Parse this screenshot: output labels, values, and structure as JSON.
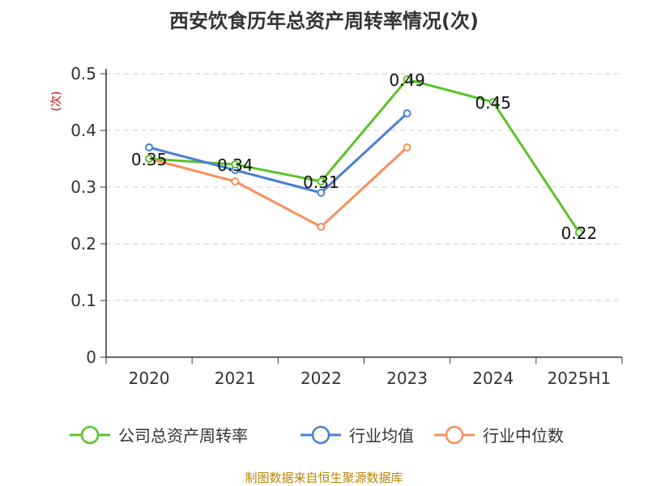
{
  "chart_data": {
    "type": "line",
    "title": "西安饮食历年总资产周转率情况(次)",
    "ylabel": "(次)",
    "xlabel": "",
    "categories": [
      "2020",
      "2021",
      "2022",
      "2023",
      "2024",
      "2025H1"
    ],
    "ylim": [
      0,
      0.5
    ],
    "yticks": [
      "0",
      "0.1",
      "0.2",
      "0.3",
      "0.4",
      "0.5"
    ],
    "grid": true,
    "legend_position": "bottom",
    "series": [
      {
        "name": "公司总资产周转率",
        "color": "#5cc22b",
        "values": [
          0.35,
          0.34,
          0.31,
          0.49,
          0.45,
          0.22
        ],
        "labels": [
          "0.35",
          "0.34",
          "0.31",
          "0.49",
          "0.45",
          "0.22"
        ]
      },
      {
        "name": "行业均值",
        "color": "#4a7fd4",
        "values": [
          0.37,
          0.33,
          0.29,
          0.43,
          null,
          null
        ]
      },
      {
        "name": "行业中位数",
        "color": "#f5905c",
        "values": [
          0.35,
          0.31,
          0.23,
          0.37,
          null,
          null
        ]
      }
    ]
  },
  "source": "制图数据来自恒生聚源数据库"
}
